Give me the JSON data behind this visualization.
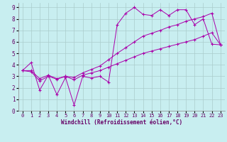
{
  "xlabel": "Windchill (Refroidissement éolien,°C)",
  "bg_color": "#c8eef0",
  "line_color": "#aa00aa",
  "grid_color": "#aacccc",
  "xlim": [
    -0.5,
    23.5
  ],
  "ylim": [
    0,
    9.4
  ],
  "xticks": [
    0,
    1,
    2,
    3,
    4,
    5,
    6,
    7,
    8,
    9,
    10,
    11,
    12,
    13,
    14,
    15,
    16,
    17,
    18,
    19,
    20,
    21,
    22,
    23
  ],
  "yticks": [
    0,
    1,
    2,
    3,
    4,
    5,
    6,
    7,
    8,
    9
  ],
  "line1_x": [
    0,
    1,
    2,
    3,
    4,
    5,
    6,
    7,
    8,
    9,
    10,
    11,
    12,
    13,
    14,
    15,
    16,
    17,
    18,
    19,
    20,
    21,
    22,
    23
  ],
  "line1_y": [
    3.5,
    4.2,
    1.8,
    3.1,
    1.4,
    2.9,
    0.5,
    3.0,
    2.85,
    3.0,
    2.5,
    7.5,
    8.5,
    9.0,
    8.4,
    8.3,
    8.8,
    8.3,
    8.8,
    8.8,
    7.5,
    8.0,
    5.8,
    5.75
  ],
  "line2_x": [
    0,
    1,
    2,
    3,
    4,
    5,
    6,
    7,
    8,
    9,
    10,
    11,
    12,
    13,
    14,
    15,
    16,
    17,
    18,
    19,
    20,
    21,
    22,
    23
  ],
  "line2_y": [
    3.5,
    3.5,
    2.8,
    3.1,
    2.8,
    3.0,
    2.9,
    3.3,
    3.6,
    3.9,
    4.45,
    5.0,
    5.5,
    6.0,
    6.5,
    6.75,
    7.0,
    7.3,
    7.5,
    7.8,
    8.0,
    8.2,
    8.5,
    5.75
  ],
  "line3_x": [
    0,
    1,
    2,
    3,
    4,
    5,
    6,
    7,
    8,
    9,
    10,
    11,
    12,
    13,
    14,
    15,
    16,
    17,
    18,
    19,
    20,
    21,
    22,
    23
  ],
  "line3_y": [
    3.5,
    3.4,
    2.6,
    3.0,
    2.75,
    3.0,
    2.7,
    3.1,
    3.3,
    3.5,
    3.8,
    4.1,
    4.4,
    4.7,
    5.0,
    5.2,
    5.4,
    5.6,
    5.8,
    6.0,
    6.2,
    6.5,
    6.8,
    5.75
  ]
}
